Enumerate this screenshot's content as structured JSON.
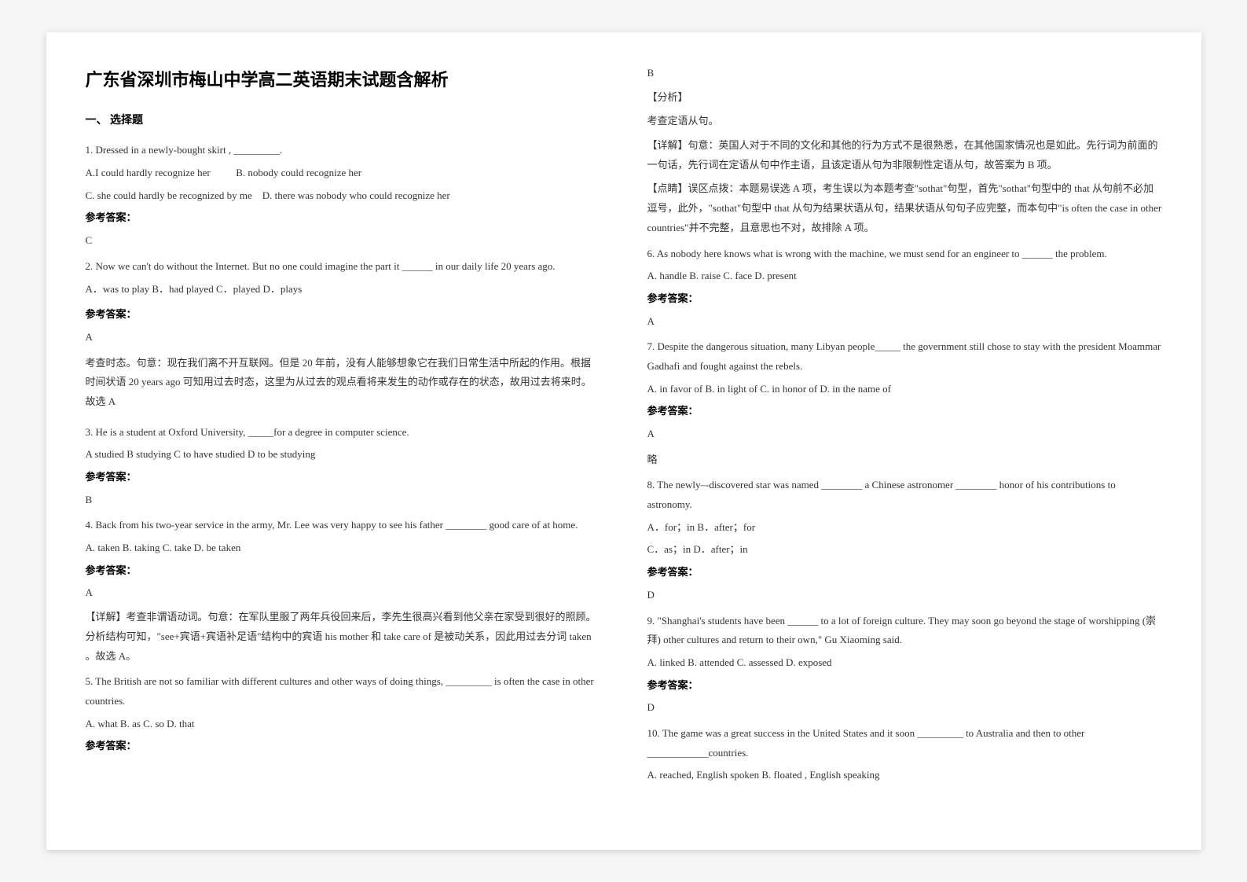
{
  "title": "广东省深圳市梅山中学高二英语期末试题含解析",
  "section1": "一、 选择题",
  "q1": {
    "stem": "1. Dressed in a newly-bought skirt , _________.",
    "optA": "A.I could hardly recognize her",
    "optB": "B. nobody could recognize her",
    "optC": "C. she could hardly be recognized by me",
    "optD": "D. there was nobody who could recognize her",
    "answerLabel": "参考答案：",
    "answer": "C"
  },
  "q2": {
    "stem": "2. Now we can't do without the Internet. But no one could imagine the part it ______ in our daily life 20 years ago.",
    "opts": "A．was to play   B．had played   C．played   D．plays",
    "answerLabel": "参考答案：",
    "answer": "A",
    "exp1": "考查时态。句意：现在我们离不开互联网。但是 20 年前，没有人能够想象它在我们日常生活中所起的作用。根据时间状语 20 years ago 可知用过去时态，这里为从过去的观点看将来发生的动作或存在的状态，故用过去将来时。故选 A"
  },
  "q3": {
    "stem": "3. He is a student at Oxford University, _____for a degree in computer science.",
    "opts": "  A studied        B studying           C to have studied   D to be studying",
    "answerLabel": "参考答案：",
    "answer": "B"
  },
  "q4": {
    "stem": "4. Back from his two-year service in the army, Mr. Lee was very happy to see his father ________ good care of at home.",
    "opts": "A. taken            B. taking           C. take   D. be taken",
    "answerLabel": "参考答案：",
    "answer": "A",
    "exp1": "【详解】考查非谓语动词。句意：在军队里服了两年兵役回来后，李先生很高兴看到他父亲在家受到很好的照顾。分析结构可知，\"see+宾语+宾语补足语\"结构中的宾语 his mother 和 take care of 是被动关系，因此用过去分词 taken 。故选 A。"
  },
  "q5": {
    "stem": "5. The British are not so familiar with different cultures and other ways of doing things, _________ is often the case in other countries.",
    "opts": "A. what   B. as   C. so   D. that",
    "answerLabel": "参考答案：",
    "answer": "B",
    "exp1": "【分析】",
    "exp2": "考查定语从句。",
    "exp3": "【详解】句意：英国人对于不同的文化和其他的行为方式不是很熟悉，在其他国家情况也是如此。先行词为前面的一句话，先行词在定语从句中作主语，且该定语从句为非限制性定语从句，故答案为 B 项。",
    "exp4": "【点睛】误区点拨：本题易误选 A 项，考生误以为本题考查\"sothat\"句型，首先\"sothat\"句型中的 that 从句前不必加逗号，此外，\"sothat\"句型中 that 从句为结果状语从句，结果状语从句句子应完整，而本句中\"is often the case in other countries\"并不完整，且意思也不对，故排除 A 项。"
  },
  "q6": {
    "stem": "6. As nobody here knows what is wrong with the machine, we must send for an engineer to ______ the problem.",
    "opts": "       A. handle           B. raise           C. face               D. present",
    "answerLabel": "参考答案：",
    "answer": "A"
  },
  "q7": {
    "stem": "7. Despite the dangerous situation, many Libyan people_____ the government still chose to stay with the president Moammar Gadhafi and fought against the rebels.",
    "opts": "    A. in favor of    B. in light of       C. in honor of    D. in the name of",
    "answerLabel": "参考答案：",
    "answer": "A",
    "exp": "略"
  },
  "q8": {
    "stem": "8. The newly–-discovered star was named ________ a Chinese astronomer ________ honor of his contributions to astronomy.",
    "opts1": "A．for；in                           B．after；for",
    "opts2": "C．as；in                            D．after；in",
    "answerLabel": "参考答案：",
    "answer": "D"
  },
  "q9": {
    "stem": "9. \"Shanghai's students have been ______ to a lot of foreign culture. They may soon go beyond the stage of worshipping (崇拜) other cultures and return to their own,\" Gu Xiaoming said.",
    "opts": "       A. linked               B. attended     C. assessed   D. exposed",
    "answerLabel": "参考答案：",
    "answer": "D"
  },
  "q10": {
    "stem": "10. The game was a great success in the United States and it soon _________ to Australia and then to other ____________countries.",
    "opts": "    A. reached, English spoken                                           B. floated      , English speaking"
  }
}
